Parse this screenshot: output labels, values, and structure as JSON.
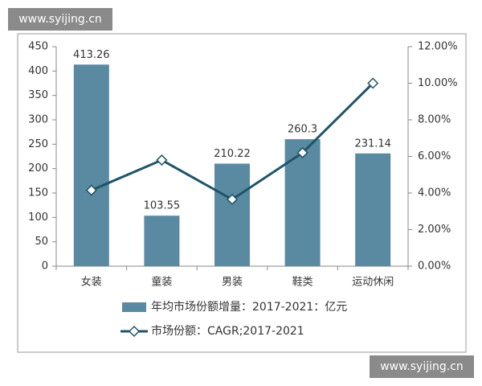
{
  "watermarks": [
    "www.syijing.cn",
    "www.syijing.cn"
  ],
  "chart_data": {
    "type": "bar",
    "categories": [
      "女装",
      "童装",
      "男装",
      "鞋类",
      "运动休闲"
    ],
    "series": [
      {
        "name": "年均市场份额增量：2017-2021：亿元",
        "type": "bar",
        "color": "#5a8aa2",
        "values": [
          413.26,
          103.55,
          210.22,
          260.3,
          231.14
        ]
      },
      {
        "name": "市场份额：CAGR;2017-2021",
        "type": "line",
        "axis": "y2",
        "color": "#1f5568",
        "values": [
          4.15,
          5.8,
          3.65,
          6.2,
          10.0
        ]
      }
    ],
    "ylim": [
      0,
      450
    ],
    "yticks": [
      0,
      50,
      100,
      150,
      200,
      250,
      300,
      350,
      400,
      450
    ],
    "y2lim": [
      0,
      12
    ],
    "y2ticks": [
      {
        "value": 0,
        "label": "0.00%"
      },
      {
        "value": 2,
        "label": "2.00%"
      },
      {
        "value": 4,
        "label": "4.00%"
      },
      {
        "value": 6,
        "label": "6.00%"
      },
      {
        "value": 8,
        "label": "8.00%"
      },
      {
        "value": 10,
        "label": "10.00%"
      },
      {
        "value": 12,
        "label": "12.00%"
      }
    ],
    "grid": false,
    "legend": "bottom"
  }
}
